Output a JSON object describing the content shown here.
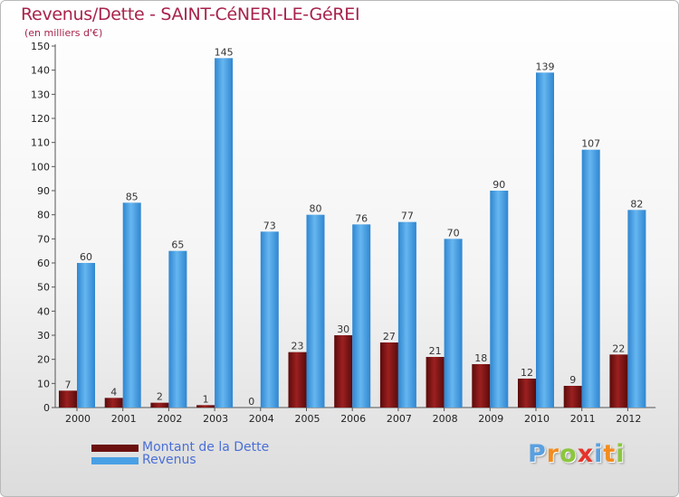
{
  "chart_data": {
    "type": "bar",
    "title": "Revenus/Dette - SAINT-CéNERI-LE-GéREI",
    "subtitle": "(en milliers d'€)",
    "categories": [
      "2000",
      "2001",
      "2002",
      "2003",
      "2004",
      "2005",
      "2006",
      "2007",
      "2008",
      "2009",
      "2010",
      "2011",
      "2012"
    ],
    "series": [
      {
        "name": "Montant de la Dette",
        "color": "#7a1414",
        "values": [
          7,
          4,
          2,
          1,
          0,
          23,
          30,
          27,
          21,
          18,
          12,
          9,
          22
        ]
      },
      {
        "name": "Revenus",
        "color": "#4aa0e4",
        "values": [
          60,
          85,
          65,
          145,
          73,
          80,
          76,
          77,
          70,
          90,
          139,
          107,
          82
        ]
      }
    ],
    "yticks": [
      0,
      10,
      20,
      30,
      40,
      50,
      60,
      70,
      80,
      90,
      100,
      110,
      120,
      130,
      140,
      150
    ],
    "ylim": [
      0,
      150
    ],
    "grid": false,
    "legend": "bottom-left"
  },
  "logo": {
    "letters": [
      "P",
      "r",
      "o",
      "x",
      "i",
      "t",
      "i"
    ],
    "colors": [
      "#5aa0e0",
      "#f28c1e",
      "#8cc63e",
      "#e5332a",
      "#5aa0e0",
      "#f28c1e",
      "#8cc63e"
    ]
  }
}
